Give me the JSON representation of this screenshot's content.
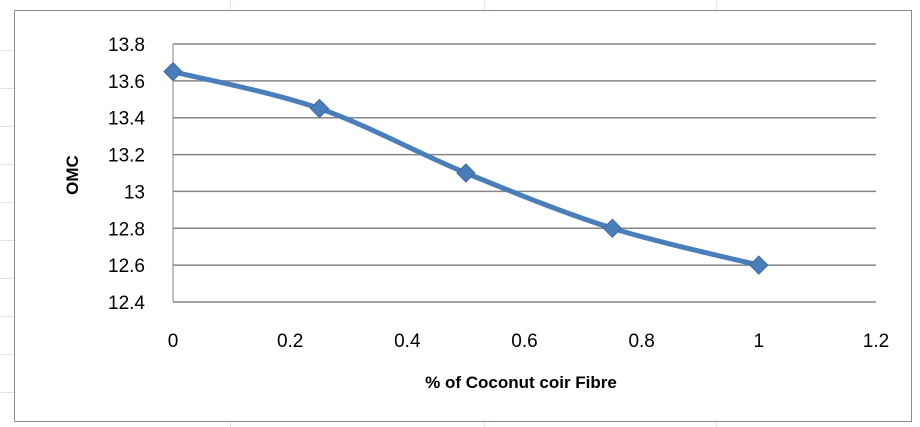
{
  "chart_data": {
    "type": "line",
    "title": "",
    "xlabel": "% of Coconut coir Fibre",
    "ylabel": "OMC",
    "x": [
      0,
      0.25,
      0.5,
      0.75,
      1
    ],
    "series": [
      {
        "values": [
          13.65,
          13.45,
          13.1,
          12.8,
          12.6
        ],
        "color": "#4a7ebb",
        "marker": "diamond"
      }
    ],
    "xlim": [
      0,
      1.2
    ],
    "ylim": [
      12.4,
      13.8
    ],
    "xticks": [
      0,
      0.2,
      0.4,
      0.6,
      0.8,
      1,
      1.2
    ],
    "yticks": [
      12.4,
      12.6,
      12.8,
      13,
      13.2,
      13.4,
      13.6,
      13.8
    ],
    "xtick_labels": [
      "0",
      "0.2",
      "0.4",
      "0.6",
      "0.8",
      "1",
      "1.2"
    ],
    "ytick_labels": [
      "12.4",
      "12.6",
      "12.8",
      "13",
      "13.2",
      "13.4",
      "13.6",
      "13.8"
    ],
    "grid": "horizontal",
    "legend": "none",
    "smooth": true
  }
}
